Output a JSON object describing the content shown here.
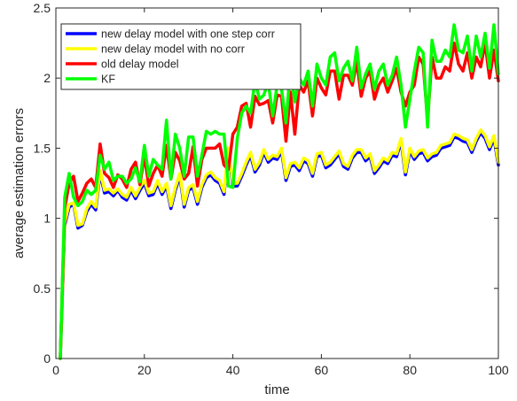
{
  "chart_data": {
    "type": "line",
    "title": "",
    "xlabel": "time",
    "ylabel": "average estimation errors",
    "xlim": [
      0,
      100
    ],
    "ylim": [
      0,
      2.5
    ],
    "xticks": [
      0,
      20,
      40,
      60,
      80,
      100
    ],
    "yticks": [
      0,
      0.5,
      1,
      1.5,
      2,
      2.5
    ],
    "xtick_labels": [
      "0",
      "20",
      "40",
      "60",
      "80",
      "100"
    ],
    "ytick_labels": [
      "0",
      "0.5",
      "1",
      "1.5",
      "2",
      "2.5"
    ],
    "grid": false,
    "legend_position": "top-left",
    "x": [
      1,
      2,
      3,
      4,
      5,
      6,
      7,
      8,
      9,
      10,
      11,
      12,
      13,
      14,
      15,
      16,
      17,
      18,
      19,
      20,
      21,
      22,
      23,
      24,
      25,
      26,
      27,
      28,
      29,
      30,
      31,
      32,
      33,
      34,
      35,
      36,
      37,
      38,
      39,
      40,
      41,
      42,
      43,
      44,
      45,
      46,
      47,
      48,
      49,
      50,
      51,
      52,
      53,
      54,
      55,
      56,
      57,
      58,
      59,
      60,
      61,
      62,
      63,
      64,
      65,
      66,
      67,
      68,
      69,
      70,
      71,
      72,
      73,
      74,
      75,
      76,
      77,
      78,
      79,
      80,
      81,
      82,
      83,
      84,
      85,
      86,
      87,
      88,
      89,
      90,
      91,
      92,
      93,
      94,
      95,
      96,
      97,
      98,
      99,
      100
    ],
    "series": [
      {
        "name": "new delay model with one step corr",
        "color": "#0000ff",
        "values": [
          0,
          0.95,
          1.08,
          1.1,
          0.93,
          0.95,
          1.05,
          1.1,
          1.06,
          1.32,
          1.18,
          1.19,
          1.16,
          1.2,
          1.15,
          1.13,
          1.2,
          1.14,
          1.2,
          1.25,
          1.16,
          1.17,
          1.25,
          1.17,
          1.23,
          1.07,
          1.2,
          1.3,
          1.08,
          1.2,
          1.22,
          1.1,
          1.22,
          1.29,
          1.31,
          1.27,
          1.25,
          1.17,
          1.48,
          1.23,
          1.23,
          1.3,
          1.38,
          1.45,
          1.33,
          1.38,
          1.47,
          1.4,
          1.43,
          1.42,
          1.48,
          1.27,
          1.37,
          1.38,
          1.34,
          1.41,
          1.39,
          1.3,
          1.44,
          1.45,
          1.36,
          1.38,
          1.42,
          1.46,
          1.37,
          1.35,
          1.43,
          1.47,
          1.47,
          1.41,
          1.44,
          1.32,
          1.36,
          1.41,
          1.39,
          1.45,
          1.44,
          1.55,
          1.31,
          1.48,
          1.42,
          1.46,
          1.47,
          1.41,
          1.44,
          1.45,
          1.5,
          1.51,
          1.52,
          1.58,
          1.57,
          1.55,
          1.54,
          1.47,
          1.55,
          1.61,
          1.57,
          1.49,
          1.57,
          1.38
        ]
      },
      {
        "name": "new delay model with no corr",
        "color": "#ffff00",
        "values": [
          0,
          0.97,
          1.1,
          1.11,
          0.95,
          0.96,
          1.07,
          1.12,
          1.08,
          1.34,
          1.2,
          1.21,
          1.18,
          1.21,
          1.17,
          1.15,
          1.22,
          1.16,
          1.22,
          1.27,
          1.18,
          1.19,
          1.27,
          1.19,
          1.25,
          1.09,
          1.22,
          1.32,
          1.1,
          1.22,
          1.24,
          1.12,
          1.24,
          1.31,
          1.33,
          1.29,
          1.27,
          1.19,
          1.5,
          1.25,
          1.25,
          1.32,
          1.4,
          1.47,
          1.35,
          1.4,
          1.49,
          1.42,
          1.45,
          1.44,
          1.5,
          1.29,
          1.39,
          1.4,
          1.36,
          1.43,
          1.41,
          1.32,
          1.46,
          1.47,
          1.38,
          1.4,
          1.44,
          1.48,
          1.39,
          1.37,
          1.45,
          1.49,
          1.49,
          1.43,
          1.46,
          1.34,
          1.38,
          1.43,
          1.41,
          1.47,
          1.46,
          1.57,
          1.33,
          1.5,
          1.44,
          1.48,
          1.49,
          1.43,
          1.46,
          1.47,
          1.52,
          1.53,
          1.54,
          1.6,
          1.59,
          1.57,
          1.56,
          1.49,
          1.57,
          1.63,
          1.59,
          1.51,
          1.59,
          1.4
        ]
      },
      {
        "name": "old delay model",
        "color": "#ff0000",
        "values": [
          0,
          1.07,
          1.25,
          1.3,
          1.12,
          1.18,
          1.25,
          1.28,
          1.22,
          1.53,
          1.32,
          1.29,
          1.22,
          1.31,
          1.28,
          1.22,
          1.35,
          1.4,
          1.24,
          1.45,
          1.23,
          1.32,
          1.38,
          1.3,
          1.52,
          1.28,
          1.47,
          1.41,
          1.28,
          1.32,
          1.51,
          1.23,
          1.42,
          1.5,
          1.5,
          1.5,
          1.53,
          1.38,
          1.35,
          1.6,
          1.65,
          1.8,
          1.82,
          1.65,
          1.87,
          1.81,
          1.82,
          1.84,
          1.68,
          1.88,
          1.87,
          1.55,
          1.9,
          1.6,
          1.95,
          1.9,
          1.98,
          1.73,
          2.0,
          1.93,
          1.88,
          2.05,
          2.05,
          1.85,
          2.02,
          2.02,
          1.95,
          2.12,
          1.87,
          2.0,
          2.05,
          1.85,
          1.95,
          2.0,
          1.9,
          1.98,
          2.07,
          1.9,
          1.8,
          1.9,
          1.95,
          2.15,
          2.1,
          1.7,
          2.15,
          2.0,
          2.0,
          2.08,
          2.05,
          2.25,
          2.1,
          2.05,
          2.18,
          2.0,
          2.15,
          2.08,
          2.25,
          2.0,
          2.2,
          1.98
        ]
      },
      {
        "name": "KF",
        "color": "#00ff00",
        "values": [
          0,
          1.15,
          1.32,
          1.15,
          1.09,
          1.12,
          1.2,
          1.17,
          1.2,
          1.45,
          1.35,
          1.4,
          1.27,
          1.3,
          1.3,
          1.25,
          1.28,
          1.36,
          1.26,
          1.52,
          1.3,
          1.42,
          1.38,
          1.35,
          1.7,
          1.28,
          1.6,
          1.5,
          1.3,
          1.58,
          1.58,
          1.3,
          1.45,
          1.62,
          1.6,
          1.62,
          1.6,
          1.6,
          1.23,
          1.22,
          1.57,
          1.75,
          1.8,
          1.75,
          1.98,
          1.85,
          1.88,
          1.97,
          1.73,
          1.95,
          1.92,
          1.68,
          2.07,
          1.83,
          2.0,
          1.95,
          2.05,
          1.8,
          2.1,
          2.0,
          1.95,
          2.15,
          2.18,
          1.98,
          2.07,
          2.12,
          1.98,
          2.22,
          1.93,
          2.03,
          2.1,
          1.92,
          2.05,
          2.1,
          1.95,
          2.02,
          2.15,
          1.95,
          1.65,
          1.85,
          2.05,
          2.22,
          2.18,
          1.65,
          2.27,
          2.12,
          2.12,
          2.2,
          2.15,
          2.38,
          2.2,
          2.18,
          2.3,
          2.05,
          2.3,
          2.15,
          2.32,
          2.07,
          2.38,
          2.03
        ]
      }
    ]
  }
}
